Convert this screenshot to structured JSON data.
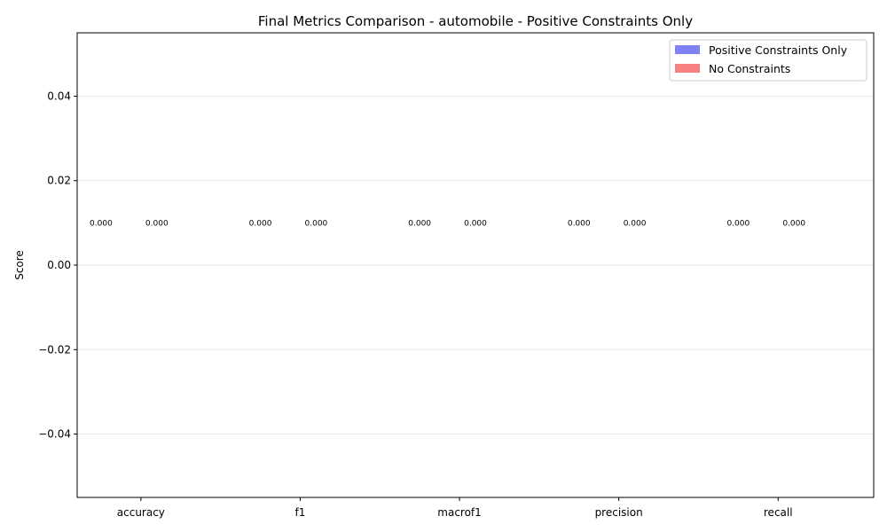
{
  "chart_data": {
    "type": "bar",
    "title": "Final Metrics Comparison - automobile - Positive Constraints Only",
    "xlabel": "",
    "ylabel": "Score",
    "categories": [
      "accuracy",
      "f1",
      "macrof1",
      "precision",
      "recall"
    ],
    "series": [
      {
        "name": "Positive Constraints Only",
        "values": [
          0.0,
          0.0,
          0.0,
          0.0,
          0.0
        ],
        "color": "#4a4af4"
      },
      {
        "name": "No Constraints",
        "values": [
          0.0,
          0.0,
          0.0,
          0.0,
          0.0
        ],
        "color": "#f44a4a"
      }
    ],
    "data_labels": [
      "0.000",
      "0.000",
      "0.000",
      "0.000",
      "0.000"
    ],
    "yticks": [
      -0.04,
      -0.02,
      0.0,
      0.02,
      0.04
    ],
    "ytick_labels": [
      "−0.04",
      "−0.02",
      "0.00",
      "0.02",
      "0.04"
    ],
    "ylim": [
      -0.055,
      0.055
    ],
    "grid": "y",
    "legend_position": "upper right"
  }
}
